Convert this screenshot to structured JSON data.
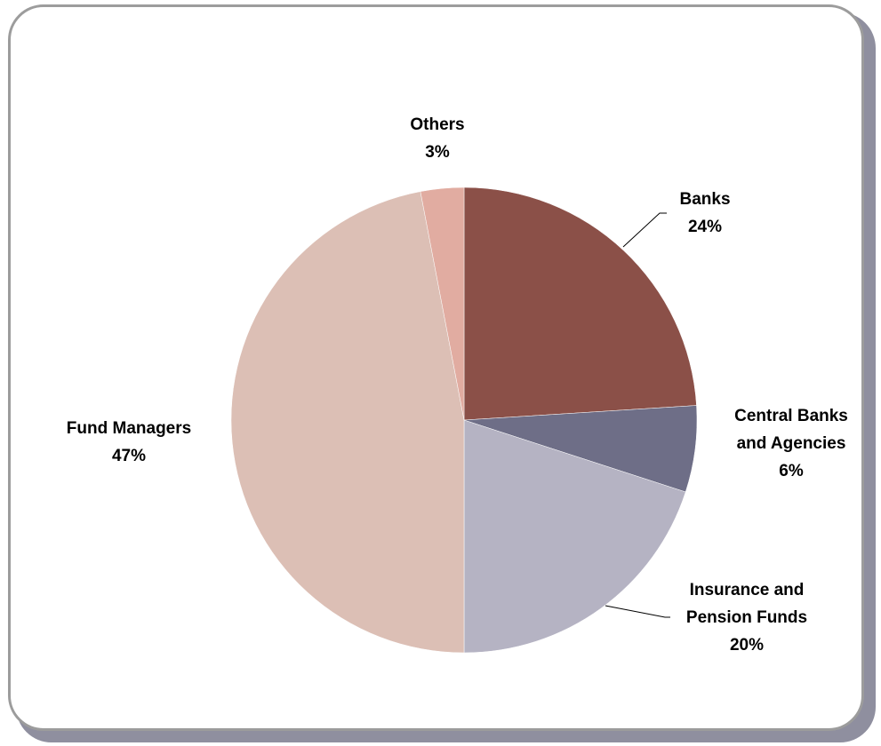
{
  "chart_data": {
    "type": "pie",
    "title": "",
    "legend": "none",
    "start_angle_deg": 0,
    "direction": "clockwise",
    "slices": [
      {
        "label_lines": [
          "Banks"
        ],
        "value": 24,
        "display": "24%",
        "color": "#8b5048"
      },
      {
        "label_lines": [
          "Central Banks",
          "and Agencies"
        ],
        "value": 6,
        "display": "6%",
        "color": "#6e6e87"
      },
      {
        "label_lines": [
          "Insurance and",
          "Pension Funds"
        ],
        "value": 20,
        "display": "20%",
        "color": "#b5b3c3"
      },
      {
        "label_lines": [
          "Fund Managers"
        ],
        "value": 47,
        "display": "47%",
        "color": "#dcbfb5"
      },
      {
        "label_lines": [
          "Others"
        ],
        "value": 3,
        "display": "3%",
        "color": "#e1aca1"
      }
    ]
  }
}
